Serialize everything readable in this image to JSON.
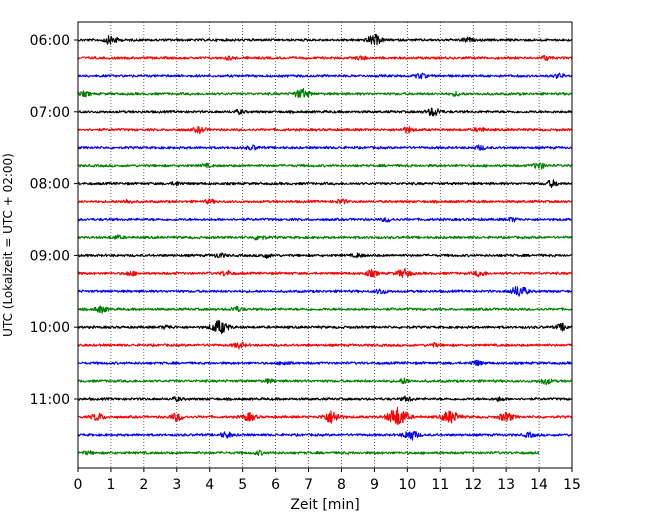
{
  "chart_data": {
    "type": "line",
    "title": "",
    "xlabel": "Zeit  [min]",
    "ylabel": "UTC (Lokalzeit = UTC + 02:00)",
    "xlim": [
      0,
      15
    ],
    "x_ticks": [
      0,
      1,
      2,
      3,
      4,
      5,
      6,
      7,
      8,
      9,
      10,
      11,
      12,
      13,
      14,
      15
    ],
    "y_tick_labels": [
      "06:00",
      "07:00",
      "08:00",
      "09:00",
      "10:00",
      "11:00"
    ],
    "grid": "vertical dotted at each minute",
    "colors_cycle": [
      "#000000",
      "#ff0000",
      "#0000ff",
      "#008000"
    ],
    "trace_interval_min": 15,
    "traces": [
      {
        "start": "06:00",
        "color": "#000000",
        "end_min": 15,
        "events": [
          [
            1.0,
            1.2
          ],
          [
            9.0,
            1.4
          ],
          [
            11.8,
            0.6
          ]
        ]
      },
      {
        "start": "06:15",
        "color": "#ff0000",
        "end_min": 15,
        "events": [
          [
            4.6,
            0.4
          ],
          [
            8.6,
            0.5
          ],
          [
            14.2,
            0.6
          ]
        ]
      },
      {
        "start": "06:30",
        "color": "#0000ff",
        "end_min": 15,
        "events": [
          [
            10.4,
            0.7
          ],
          [
            14.6,
            0.6
          ]
        ]
      },
      {
        "start": "06:45",
        "color": "#008000",
        "end_min": 15,
        "events": [
          [
            0.2,
            0.6
          ],
          [
            6.8,
            1.4
          ],
          [
            11.5,
            0.5
          ]
        ]
      },
      {
        "start": "07:00",
        "color": "#000000",
        "end_min": 15,
        "events": [
          [
            4.9,
            0.5
          ],
          [
            10.8,
            1.2
          ]
        ]
      },
      {
        "start": "07:15",
        "color": "#ff0000",
        "end_min": 15,
        "events": [
          [
            3.7,
            0.8
          ],
          [
            10.0,
            0.8
          ],
          [
            12.2,
            0.6
          ]
        ]
      },
      {
        "start": "07:30",
        "color": "#0000ff",
        "end_min": 15,
        "events": [
          [
            5.3,
            0.6
          ],
          [
            12.2,
            0.6
          ]
        ]
      },
      {
        "start": "07:45",
        "color": "#008000",
        "end_min": 15,
        "events": [
          [
            3.9,
            0.4
          ],
          [
            14.0,
            0.9
          ]
        ]
      },
      {
        "start": "08:00",
        "color": "#000000",
        "end_min": 15,
        "events": [
          [
            3.0,
            0.5
          ],
          [
            14.4,
            0.9
          ]
        ]
      },
      {
        "start": "08:15",
        "color": "#ff0000",
        "end_min": 15,
        "events": [
          [
            1.5,
            0.5
          ],
          [
            4.0,
            0.5
          ],
          [
            8.0,
            0.6
          ]
        ]
      },
      {
        "start": "08:30",
        "color": "#0000ff",
        "end_min": 15,
        "events": [
          [
            9.4,
            0.6
          ],
          [
            13.2,
            0.5
          ]
        ]
      },
      {
        "start": "08:45",
        "color": "#008000",
        "end_min": 15,
        "events": [
          [
            1.2,
            0.5
          ],
          [
            5.5,
            0.7
          ]
        ]
      },
      {
        "start": "09:00",
        "color": "#000000",
        "end_min": 15,
        "events": [
          [
            4.3,
            0.6
          ],
          [
            5.7,
            0.6
          ],
          [
            8.5,
            0.5
          ]
        ]
      },
      {
        "start": "09:15",
        "color": "#ff0000",
        "end_min": 15,
        "events": [
          [
            1.6,
            0.6
          ],
          [
            4.5,
            0.7
          ],
          [
            8.9,
            0.9
          ],
          [
            9.9,
            1.2
          ],
          [
            12.2,
            0.8
          ]
        ]
      },
      {
        "start": "09:30",
        "color": "#0000ff",
        "end_min": 15,
        "events": [
          [
            9.2,
            0.7
          ],
          [
            13.4,
            1.6
          ]
        ]
      },
      {
        "start": "09:45",
        "color": "#008000",
        "end_min": 15,
        "events": [
          [
            0.7,
            0.9
          ],
          [
            4.8,
            0.7
          ]
        ]
      },
      {
        "start": "10:00",
        "color": "#000000",
        "end_min": 15,
        "events": [
          [
            2.7,
            0.5
          ],
          [
            4.3,
            1.9
          ],
          [
            14.7,
            0.9
          ]
        ]
      },
      {
        "start": "10:15",
        "color": "#ff0000",
        "end_min": 15,
        "events": [
          [
            4.9,
            0.8
          ],
          [
            10.8,
            0.5
          ]
        ]
      },
      {
        "start": "10:30",
        "color": "#0000ff",
        "end_min": 15,
        "events": [
          [
            6.3,
            0.6
          ],
          [
            12.1,
            0.7
          ]
        ]
      },
      {
        "start": "10:45",
        "color": "#008000",
        "end_min": 15,
        "events": [
          [
            5.8,
            0.5
          ],
          [
            9.9,
            0.7
          ],
          [
            14.2,
            0.8
          ]
        ]
      },
      {
        "start": "11:00",
        "color": "#000000",
        "end_min": 15,
        "events": [
          [
            3.0,
            0.5
          ],
          [
            10.0,
            0.6
          ],
          [
            12.8,
            0.5
          ]
        ]
      },
      {
        "start": "11:15",
        "color": "#ff0000",
        "end_min": 15,
        "events": [
          [
            0.6,
            1.0
          ],
          [
            3.0,
            1.1
          ],
          [
            5.2,
            1.1
          ],
          [
            7.7,
            1.8
          ],
          [
            9.6,
            1.6
          ],
          [
            9.8,
            1.8
          ],
          [
            11.3,
            1.8
          ],
          [
            13.0,
            1.3
          ]
        ]
      },
      {
        "start": "11:30",
        "color": "#0000ff",
        "end_min": 15,
        "events": [
          [
            4.5,
            0.8
          ],
          [
            10.1,
            1.4
          ],
          [
            13.7,
            0.6
          ]
        ]
      },
      {
        "start": "11:45",
        "color": "#008000",
        "end_min": 14.0,
        "events": [
          [
            0.3,
            0.4
          ],
          [
            5.5,
            0.5
          ]
        ]
      }
    ]
  }
}
